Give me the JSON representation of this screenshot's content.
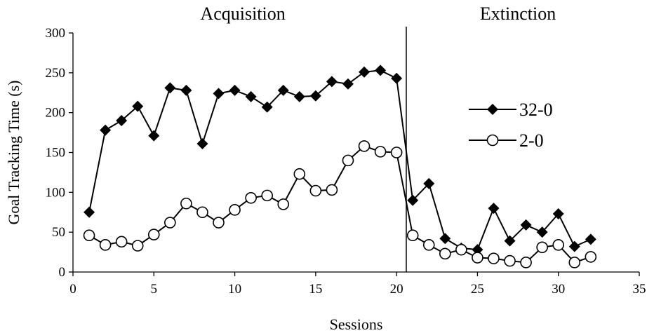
{
  "chart_data": {
    "type": "line",
    "xlabel": "Sessions",
    "ylabel": "Goal Tracking Time (s)",
    "xlim": [
      0,
      35
    ],
    "ylim": [
      0,
      300
    ],
    "x_ticks": [
      0,
      5,
      10,
      15,
      20,
      25,
      30,
      35
    ],
    "y_ticks": [
      0,
      50,
      100,
      150,
      200,
      250,
      300
    ],
    "x_tick_labels": [
      "0",
      "5",
      "10",
      "15",
      "20",
      "25",
      "30",
      "35"
    ],
    "y_tick_labels": [
      "0",
      "50",
      "100",
      "150",
      "200",
      "250",
      "300"
    ],
    "phase_divider_x": 20.6,
    "phases": [
      {
        "label": "Acquisition",
        "center_x": 10.5
      },
      {
        "label": "Extinction",
        "center_x": 27.5
      }
    ],
    "grid": false,
    "legend_position": "right",
    "series": [
      {
        "name": "32-0",
        "marker": "filled-diamond",
        "x": [
          1,
          2,
          3,
          4,
          5,
          6,
          7,
          8,
          9,
          10,
          11,
          12,
          13,
          14,
          15,
          16,
          17,
          18,
          19,
          20,
          21,
          22,
          23,
          24,
          25,
          26,
          27,
          28,
          29,
          30,
          31,
          32
        ],
        "values": [
          75,
          178,
          190,
          208,
          171,
          231,
          228,
          161,
          224,
          228,
          220,
          207,
          228,
          220,
          221,
          239,
          236,
          251,
          253,
          243,
          90,
          111,
          42,
          30,
          28,
          80,
          39,
          59,
          50,
          73,
          32,
          41
        ]
      },
      {
        "name": "2-0",
        "marker": "open-circle",
        "x": [
          1,
          2,
          3,
          4,
          5,
          6,
          7,
          8,
          9,
          10,
          11,
          12,
          13,
          14,
          15,
          16,
          17,
          18,
          19,
          20,
          21,
          22,
          23,
          24,
          25,
          26,
          27,
          28,
          29,
          30,
          31,
          32
        ],
        "values": [
          46,
          34,
          38,
          33,
          47,
          62,
          86,
          75,
          62,
          78,
          93,
          96,
          85,
          123,
          102,
          103,
          140,
          158,
          151,
          150,
          46,
          34,
          23,
          28,
          18,
          17,
          14,
          12,
          31,
          34,
          12,
          19
        ]
      }
    ]
  }
}
